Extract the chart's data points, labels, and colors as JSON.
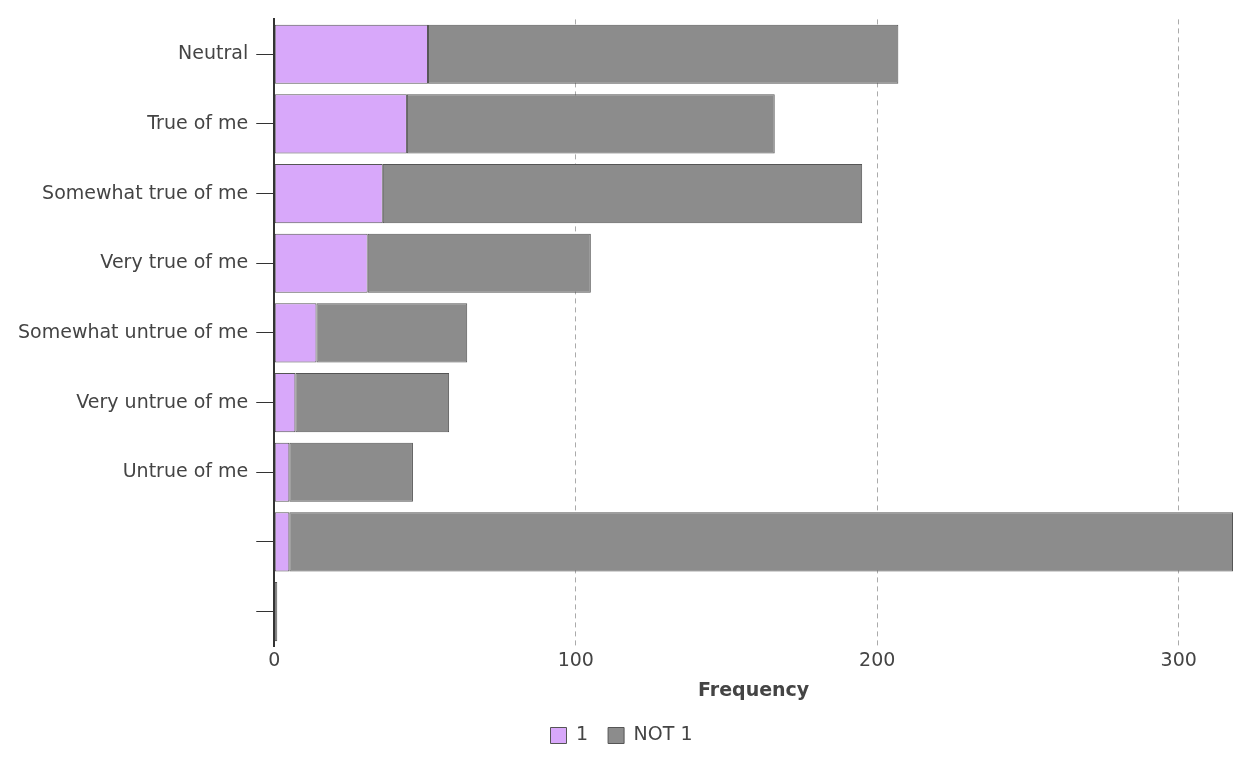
{
  "chart_data": {
    "type": "bar",
    "orientation": "horizontal",
    "stacked": true,
    "xlabel": "Frequency",
    "categories": [
      "Neutral",
      "True of me",
      "Somewhat true of me",
      "Very true of me",
      "Somewhat untrue of me",
      "Very untrue of me",
      "Untrue of me",
      null,
      null
    ],
    "series": [
      {
        "name": "1",
        "color": "#d8a8fa",
        "values": [
          51,
          44,
          36,
          31,
          14,
          7,
          5,
          5,
          0
        ]
      },
      {
        "name": "NOT 1",
        "color": "#8c8c8c",
        "values": [
          156,
          122,
          159,
          74,
          50,
          51,
          41,
          313,
          1
        ]
      }
    ],
    "xlim": [
      0,
      318
    ],
    "xticks": [
      0,
      100,
      200,
      300
    ],
    "grid": "x",
    "legend": "bottom"
  }
}
